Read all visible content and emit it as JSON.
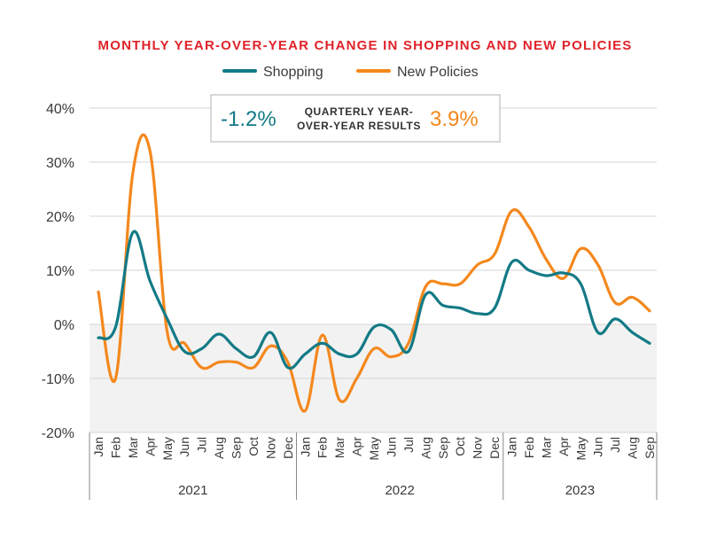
{
  "chart_data": {
    "type": "line",
    "title": "MONTHLY YEAR-OVER-YEAR CHANGE IN SHOPPING AND NEW POLICIES",
    "ylim": [
      -20,
      40
    ],
    "yticks": [
      40,
      30,
      20,
      10,
      0,
      -10,
      -20
    ],
    "ytick_labels": [
      "40%",
      "30%",
      "20%",
      "10%",
      "0%",
      "-10%",
      "-20%"
    ],
    "grid": true,
    "legend_position": "top-center",
    "months": [
      "Jan",
      "Feb",
      "Mar",
      "Apr",
      "May",
      "Jun",
      "Jul",
      "Aug",
      "Sep",
      "Oct",
      "Nov",
      "Dec",
      "Jan",
      "Feb",
      "Mar",
      "Apr",
      "May",
      "Jun",
      "Jul",
      "Aug",
      "Sep",
      "Oct",
      "Nov",
      "Dec",
      "Jan",
      "Feb",
      "Mar",
      "Apr",
      "May",
      "Jun",
      "Jul",
      "Aug",
      "Sep"
    ],
    "years": [
      {
        "label": "2021",
        "months": 12
      },
      {
        "label": "2022",
        "months": 12
      },
      {
        "label": "2023",
        "months": 9
      }
    ],
    "series": [
      {
        "name": "Shopping",
        "color": "#137a86",
        "values": [
          -2.5,
          -0.5,
          17,
          8,
          1,
          -5,
          -4.5,
          -1.8,
          -4.5,
          -6,
          -1.5,
          -8,
          -5.5,
          -3.5,
          -5.5,
          -5.5,
          -0.5,
          -1,
          -5,
          5.5,
          3.5,
          3,
          2,
          3,
          11.5,
          10,
          9,
          9.5,
          7.5,
          -1.5,
          1,
          -1.5,
          -3.5
        ]
      },
      {
        "name": "New Policies",
        "color": "#f4881d",
        "values": [
          6,
          -10,
          28,
          32,
          -1.5,
          -3.5,
          -8,
          -7,
          -7,
          -8,
          -4,
          -7,
          -16,
          -2,
          -14,
          -10,
          -4.5,
          -6,
          -3.5,
          7,
          7.5,
          7.5,
          11,
          13,
          21,
          18,
          12,
          8.5,
          14,
          11,
          4,
          5,
          2.5
        ]
      }
    ],
    "quarterly": {
      "label": "QUARTERLY YEAR-OVER-YEAR RESULTS",
      "label_line1": "QUARTERLY YEAR-",
      "label_line2": "OVER-YEAR RESULTS",
      "shopping": "-1.2%",
      "new_policies": "3.9%"
    },
    "colors": {
      "title": "#e02229",
      "negative_fill": "#f2f2f2",
      "grid": "#d6d6d6"
    }
  }
}
